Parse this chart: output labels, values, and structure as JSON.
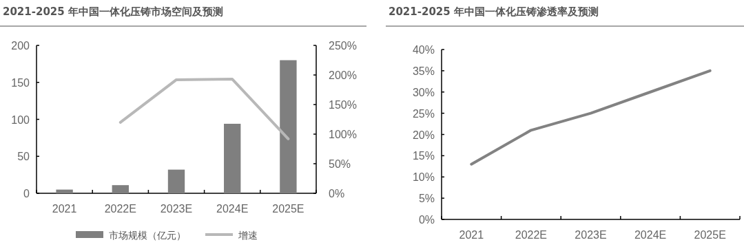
{
  "chart_data": [
    {
      "type": "bar",
      "title": "2021-2025 年中国一体化压铸市场空间及预测",
      "categories": [
        "2021",
        "2022E",
        "2023E",
        "2024E",
        "2025E"
      ],
      "series": [
        {
          "name": "市场规模（亿元）",
          "color": "#7f7f7f",
          "values": [
            5,
            11,
            32,
            94,
            180
          ]
        },
        {
          "name": "增速",
          "type": "line",
          "axis": "y2",
          "color": "#b8b8b8",
          "values": [
            null,
            120,
            192,
            193,
            92
          ]
        }
      ],
      "ylim": [
        0,
        200
      ],
      "yticks": [
        0,
        50,
        100,
        150,
        200
      ],
      "y2lim": [
        0,
        250
      ],
      "y2ticks": [
        {
          "value": 0,
          "label": "0%"
        },
        {
          "value": 50,
          "label": "50%"
        },
        {
          "value": 100,
          "label": "100%"
        },
        {
          "value": 150,
          "label": "150%"
        },
        {
          "value": 200,
          "label": "200%"
        },
        {
          "value": 250,
          "label": "250%"
        }
      ],
      "legend": "bottom"
    },
    {
      "type": "line",
      "title": "2021-2025 年中国一体化压铸渗透率及预测",
      "categories": [
        "2021",
        "2022E",
        "2023E",
        "2024E",
        "2025E"
      ],
      "series": [
        {
          "color": "#828282",
          "values": [
            13,
            21,
            25,
            30,
            35
          ]
        }
      ],
      "ylim": [
        0,
        40
      ],
      "yticks": [
        {
          "value": 0,
          "label": "0%"
        },
        {
          "value": 5,
          "label": "5%"
        },
        {
          "value": 10,
          "label": "10%"
        },
        {
          "value": 15,
          "label": "15%"
        },
        {
          "value": 20,
          "label": "20%"
        },
        {
          "value": 25,
          "label": "25%"
        },
        {
          "value": 30,
          "label": "30%"
        },
        {
          "value": 35,
          "label": "35%"
        },
        {
          "value": 40,
          "label": "40%"
        }
      ]
    }
  ]
}
